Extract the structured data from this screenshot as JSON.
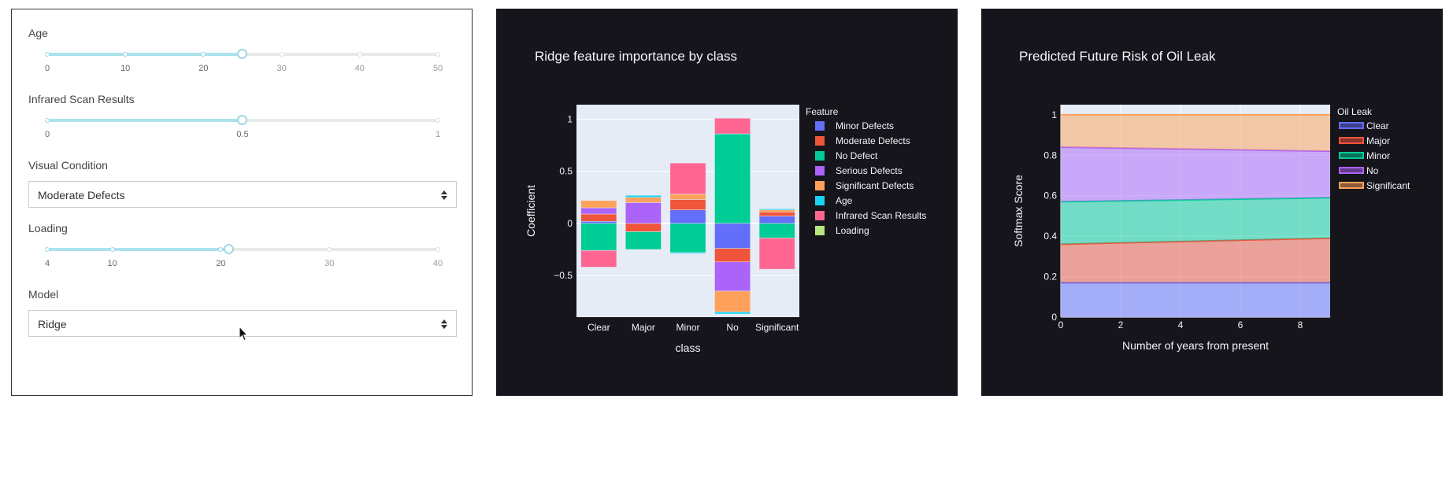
{
  "controls": {
    "age": {
      "label": "Age",
      "ticks": [
        {
          "label": "0",
          "value": 0
        },
        {
          "label": "10",
          "value": 10
        },
        {
          "label": "20",
          "value": 20
        },
        {
          "label": "30",
          "value": 30
        },
        {
          "label": "40",
          "value": 40
        },
        {
          "label": "50",
          "value": 50
        }
      ],
      "min": 0,
      "max": 50,
      "value": 25
    },
    "infrared": {
      "label": "Infrared Scan Results",
      "ticks": [
        {
          "label": "0",
          "value": 0
        },
        {
          "label": "0.5",
          "value": 0.5
        },
        {
          "label": "1",
          "value": 1
        }
      ],
      "min": 0,
      "max": 1,
      "value": 0.5
    },
    "visual_condition": {
      "label": "Visual Condition",
      "selected": "Moderate Defects"
    },
    "loading": {
      "label": "Loading",
      "ticks": [
        {
          "label": "4",
          "value": 4
        },
        {
          "label": "10",
          "value": 10
        },
        {
          "label": "20",
          "value": 20
        },
        {
          "label": "30",
          "value": 30
        },
        {
          "label": "40",
          "value": 40
        }
      ],
      "min": 4,
      "max": 40,
      "value": 20.8
    },
    "model": {
      "label": "Model",
      "selected": "Ridge"
    }
  },
  "chart_data": [
    {
      "type": "bar",
      "title": "Ridge feature importance by class",
      "xlabel": "class",
      "ylabel": "Coefficient",
      "legend_title": "Feature",
      "legend_position": "right",
      "background": "#e5ecf6",
      "ylim": [
        -0.9,
        1.14
      ],
      "yticks": [
        {
          "label": "1",
          "value": 1
        },
        {
          "label": "0.5",
          "value": 0.5
        },
        {
          "label": "0",
          "value": 0
        },
        {
          "label": "−0.5",
          "value": -0.5
        }
      ],
      "categories": [
        "Clear",
        "Major",
        "Minor",
        "No",
        "Significant"
      ],
      "series": [
        {
          "name": "Minor Defects",
          "color": "#636efa",
          "values": [
            0.02,
            0.0,
            0.13,
            -0.24,
            0.07
          ]
        },
        {
          "name": "Moderate Defects",
          "color": "#ef553b",
          "values": [
            0.07,
            -0.08,
            0.1,
            -0.13,
            0.04
          ]
        },
        {
          "name": "No Defect",
          "color": "#00cc96",
          "values": [
            -0.26,
            -0.17,
            -0.28,
            0.86,
            -0.14
          ]
        },
        {
          "name": "Serious Defects",
          "color": "#ab63fa",
          "values": [
            0.06,
            0.2,
            0.0,
            -0.28,
            0.0
          ]
        },
        {
          "name": "Significant Defects",
          "color": "#ffa15a",
          "values": [
            0.07,
            0.05,
            0.05,
            -0.2,
            0.02
          ]
        },
        {
          "name": "Age",
          "color": "#19d3f3",
          "values": [
            0.0,
            0.02,
            -0.01,
            -0.02,
            0.01
          ]
        },
        {
          "name": "Infrared Scan Results",
          "color": "#ff6692",
          "values": [
            -0.16,
            0.0,
            0.3,
            0.15,
            -0.3
          ]
        },
        {
          "name": "Loading",
          "color": "#b6e880",
          "values": [
            0.0,
            0.0,
            0.0,
            0.0,
            0.0
          ]
        }
      ]
    },
    {
      "type": "area",
      "title": "Predicted Future Risk of Oil Leak",
      "xlabel": "Number of years from present",
      "ylabel": "Softmax Score",
      "legend_title": "Oil Leak",
      "legend_position": "right",
      "background": "#e5ecf6",
      "xlim": [
        0,
        9
      ],
      "ylim": [
        0,
        1.05
      ],
      "xticks": [
        {
          "label": "0",
          "value": 0
        },
        {
          "label": "2",
          "value": 2
        },
        {
          "label": "4",
          "value": 4
        },
        {
          "label": "6",
          "value": 6
        },
        {
          "label": "8",
          "value": 8
        }
      ],
      "yticks": [
        {
          "label": "0",
          "value": 0
        },
        {
          "label": "0.2",
          "value": 0.2
        },
        {
          "label": "0.4",
          "value": 0.4
        },
        {
          "label": "0.6",
          "value": 0.6
        },
        {
          "label": "0.8",
          "value": 0.8
        },
        {
          "label": "1",
          "value": 1
        }
      ],
      "x": [
        0,
        9
      ],
      "series": [
        {
          "name": "Clear",
          "color": "#636efa",
          "values": [
            0.17,
            0.17
          ]
        },
        {
          "name": "Major",
          "color": "#ef553b",
          "values": [
            0.19,
            0.22
          ]
        },
        {
          "name": "Minor",
          "color": "#00cc96",
          "values": [
            0.21,
            0.2
          ]
        },
        {
          "name": "No",
          "color": "#ab63fa",
          "values": [
            0.27,
            0.23
          ]
        },
        {
          "name": "Significant",
          "color": "#ffa15a",
          "values": [
            0.16,
            0.18
          ]
        }
      ]
    }
  ]
}
